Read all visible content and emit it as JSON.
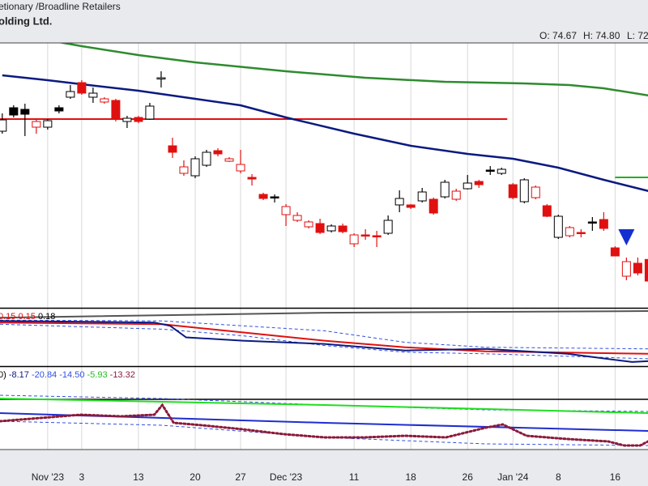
{
  "header": {
    "sector": "etionary  /Broadline Retailers",
    "name": "olding Ltd.",
    "ohlc": [
      "O: 74.67",
      "H: 74.80",
      "L: 72"
    ]
  },
  "chart_data": [
    {
      "type": "candlestick",
      "x": [
        -4,
        -3,
        -2,
        -1,
        0,
        1,
        2,
        3,
        4,
        5,
        6,
        7,
        8,
        9,
        10,
        11,
        12,
        13,
        14,
        15,
        16,
        17,
        18,
        19,
        20,
        21,
        22,
        23,
        24,
        25,
        26,
        27,
        28,
        29,
        30,
        31,
        32,
        33,
        34,
        35,
        36,
        37,
        38,
        39,
        40,
        41,
        42,
        43,
        44,
        45,
        46,
        47,
        48,
        49,
        50,
        51,
        52,
        53
      ],
      "open": [
        90.5,
        93.4,
        93.2,
        91.0,
        91.0,
        93.4,
        94.7,
        96.5,
        94.7,
        94.1,
        94.3,
        91.7,
        92.2,
        92.0,
        97.0,
        88.7,
        85.3,
        85.0,
        86.3,
        88.1,
        86.8,
        85.6,
        84.8,
        82.7,
        82.4,
        80.2,
        79.5,
        78.7,
        79.1,
        78.2,
        78.8,
        76.6,
        77.7,
        77.6,
        77.9,
        81.4,
        81.4,
        81.9,
        82.1,
        82.4,
        82.1,
        83.4,
        84.3,
        85.7,
        85.3,
        83.9,
        81.8,
        82.3,
        81.3,
        77.4,
        77.6,
        78.0,
        79.3,
        79.6,
        76.1,
        72.6,
        74.2,
        74.67
      ],
      "high": [
        92.7,
        93.7,
        93.9,
        92.0,
        92.0,
        93.7,
        96.2,
        96.8,
        95.9,
        94.7,
        94.5,
        92.4,
        92.4,
        94.0,
        97.9,
        89.7,
        86.9,
        87.4,
        88.2,
        88.4,
        87.3,
        88.2,
        85.2,
        82.9,
        82.7,
        81.5,
        80.5,
        79.5,
        79.7,
        79.0,
        79.1,
        77.9,
        78.4,
        78.2,
        80.1,
        83.2,
        81.5,
        83.5,
        82.3,
        84.5,
        83.4,
        85.1,
        84.5,
        86.2,
        86.0,
        84.1,
        84.7,
        83.8,
        81.5,
        80.2,
        78.8,
        78.4,
        79.9,
        80.5,
        76.3,
        74.9,
        74.9,
        74.8
      ],
      "low": [
        90.2,
        92.2,
        89.9,
        90.2,
        90.7,
        92.7,
        94.5,
        95.0,
        94.0,
        93.9,
        91.7,
        90.9,
        91.5,
        91.9,
        95.9,
        87.2,
        85.0,
        84.7,
        86.1,
        87.4,
        86.7,
        85.3,
        83.8,
        82.0,
        81.7,
        78.8,
        79.3,
        78.5,
        77.8,
        78.0,
        77.9,
        76.2,
        77.1,
        76.2,
        77.7,
        80.5,
        80.9,
        81.7,
        80.2,
        82.2,
        81.9,
        83.3,
        83.5,
        85.1,
        85.1,
        82.1,
        81.6,
        82.1,
        79.9,
        77.2,
        77.4,
        77.4,
        78.2,
        78.2,
        75.1,
        72.1,
        72.7,
        71.8
      ],
      "close": [
        91.9,
        92.5,
        92.6,
        91.7,
        91.8,
        93.0,
        95.4,
        95.2,
        95.2,
        94.5,
        92.1,
        92.1,
        91.7,
        93.6,
        97.1,
        87.9,
        86.1,
        87.1,
        87.9,
        87.7,
        87.1,
        86.4,
        84.6,
        82.2,
        82.3,
        81.2,
        80.1,
        79.3,
        78.0,
        78.8,
        78.1,
        77.7,
        77.6,
        77.5,
        79.5,
        82.2,
        81.1,
        83.0,
        80.4,
        84.2,
        83.1,
        84.1,
        83.9,
        85.6,
        85.8,
        82.3,
        84.5,
        83.6,
        80.0,
        80.0,
        78.6,
        77.9,
        79.2,
        78.5,
        75.1,
        74.4,
        73.0,
        72.0
      ],
      "up_color": "#000000",
      "down_color": "#e01010",
      "xlim": [
        -4.2,
        52.9
      ],
      "ylim": [
        68.7,
        101.4
      ],
      "xticks": [
        {
          "value": 0,
          "label": "Nov '23"
        },
        3,
        {
          "value": 8,
          "label": "13"
        },
        {
          "value": 13,
          "label": "20"
        },
        {
          "value": 17,
          "label": "27"
        },
        {
          "value": 21,
          "label": "Dec '23"
        },
        {
          "value": 27,
          "label": "11"
        },
        {
          "value": 32,
          "label": "18"
        },
        {
          "value": 37,
          "label": "26"
        },
        {
          "value": 41,
          "label": "Jan '24"
        },
        {
          "value": 45,
          "label": "8"
        },
        {
          "value": 50,
          "label": "16"
        }
      ],
      "lines": [
        {
          "color": "#2e8b2e",
          "x": [
            1,
            3,
            8,
            13,
            21,
            28,
            35,
            42,
            46,
            49,
            53
          ],
          "values": [
            101.5,
            101.0,
            99.9,
            99.0,
            97.9,
            97.1,
            96.6,
            96.4,
            96.2,
            95.8,
            94.9
          ]
        },
        {
          "color": "#0b1a80",
          "x": [
            -4,
            0,
            3,
            8,
            13,
            17,
            21,
            27,
            32,
            37,
            41,
            45,
            49,
            53
          ],
          "values": [
            97.4,
            96.8,
            96.3,
            95.5,
            94.5,
            93.7,
            92.2,
            90.2,
            88.7,
            87.7,
            87.1,
            86.0,
            84.5,
            83.1
          ]
        }
      ],
      "levels": [
        {
          "color": "#e01010",
          "value": 92.0,
          "x_from": -4.2,
          "x_to": 40.5
        },
        {
          "color": "#22b022",
          "value": 84.8,
          "x_from": 50,
          "x_to": 52.9
        }
      ],
      "markers": [
        {
          "x": 51,
          "value": 77.2,
          "color": "#1530d0",
          "shape": "triangle-down"
        }
      ]
    },
    {
      "type": "line",
      "labels": [
        {
          "text": "0.15",
          "color": "#e01010"
        },
        {
          "text": "0.15",
          "color": "#e01010"
        },
        {
          "text": "0.18",
          "color": "#000000"
        }
      ],
      "ylim": [
        0,
        0.7
      ],
      "series": [
        {
          "color": "#555555",
          "dash": false,
          "x": [
            -4.2,
            24.4,
            52.9
          ],
          "values": [
            0.59,
            0.65,
            0.67
          ]
        },
        {
          "color": "#3050e0",
          "dash": true,
          "x": [
            -4.2,
            10.1,
            24.4,
            31.5,
            38.6,
            52.9
          ],
          "values": [
            0.56,
            0.55,
            0.43,
            0.29,
            0.23,
            0.21
          ]
        },
        {
          "color": "#3050e0",
          "dash": true,
          "x": [
            -4.2,
            10.1,
            17.2,
            24.4,
            31.5,
            38.6,
            52.9
          ],
          "values": [
            0.51,
            0.45,
            0.37,
            0.25,
            0.17,
            0.15,
            0.09
          ]
        },
        {
          "color": "#e01010",
          "dash": false,
          "x": [
            -4.2,
            10.1,
            17.2,
            24.4,
            31.5,
            38.6,
            52.9
          ],
          "values": [
            0.53,
            0.51,
            0.41,
            0.31,
            0.23,
            0.18,
            0.15
          ]
        },
        {
          "color": "#0b1a80",
          "dash": false,
          "x": [
            -4.2,
            9.4,
            10.8,
            12.2,
            17.2,
            24.4,
            31.5,
            38.6,
            45.8,
            51.5,
            52.9
          ],
          "values": [
            0.55,
            0.53,
            0.49,
            0.35,
            0.31,
            0.27,
            0.19,
            0.21,
            0.15,
            0.05,
            0.06
          ]
        }
      ]
    },
    {
      "type": "line",
      "labels": [
        {
          "text": "0)",
          "color": "#000000"
        },
        {
          "text": "-8.17",
          "color": "#0b1a80"
        },
        {
          "text": "-20.84",
          "color": "#3050e0"
        },
        {
          "text": "-14.50",
          "color": "#3050e0"
        },
        {
          "text": "-5.93",
          "color": "#22c022"
        },
        {
          "text": "-13.32",
          "color": "#8b1a3a"
        }
      ],
      "ylim": [
        -18.6,
        12
      ],
      "zero_line": 0,
      "series": [
        {
          "color": "#3050e0",
          "dash": true,
          "x": [
            -4.2,
            10.1,
            24.4,
            38.6,
            52.9
          ],
          "values": [
            1.5,
            0.3,
            -2.1,
            -3.9,
            -4.5
          ]
        },
        {
          "color": "#3050e0",
          "dash": true,
          "x": [
            -4.2,
            10.1,
            24.4,
            38.6,
            52.9
          ],
          "values": [
            -8.1,
            -9.6,
            -14.1,
            -16.5,
            -17.1
          ]
        },
        {
          "color": "#22dd22",
          "dash": false,
          "x": [
            -4.2,
            24.4,
            52.9
          ],
          "values": [
            0.3,
            -2.1,
            -5.1
          ]
        },
        {
          "color": "#1e2ed0",
          "dash": false,
          "x": [
            -4.2,
            24.4,
            52.9
          ],
          "values": [
            -5.1,
            -8.7,
            -11.7
          ]
        },
        {
          "color": "#8b1a3a",
          "dash": "dot",
          "x": [
            -4.2,
            -0.6,
            2.9,
            6.5,
            9.4,
            10.1,
            11.1,
            13.6,
            17.2,
            20.8,
            24.4,
            27.9,
            31.5,
            35.1,
            38.6,
            40.1,
            42.2,
            45.8,
            49.4,
            50.8,
            52.2,
            52.9
          ],
          "values": [
            -8.1,
            -6.9,
            -5.7,
            -6.3,
            -5.7,
            -2.1,
            -8.7,
            -9.6,
            -11.1,
            -12.9,
            -14.1,
            -14.1,
            -13.5,
            -14.1,
            -10.5,
            -9.3,
            -13.5,
            -14.7,
            -15.6,
            -17.1,
            -17.1,
            -15.6
          ]
        }
      ]
    }
  ]
}
